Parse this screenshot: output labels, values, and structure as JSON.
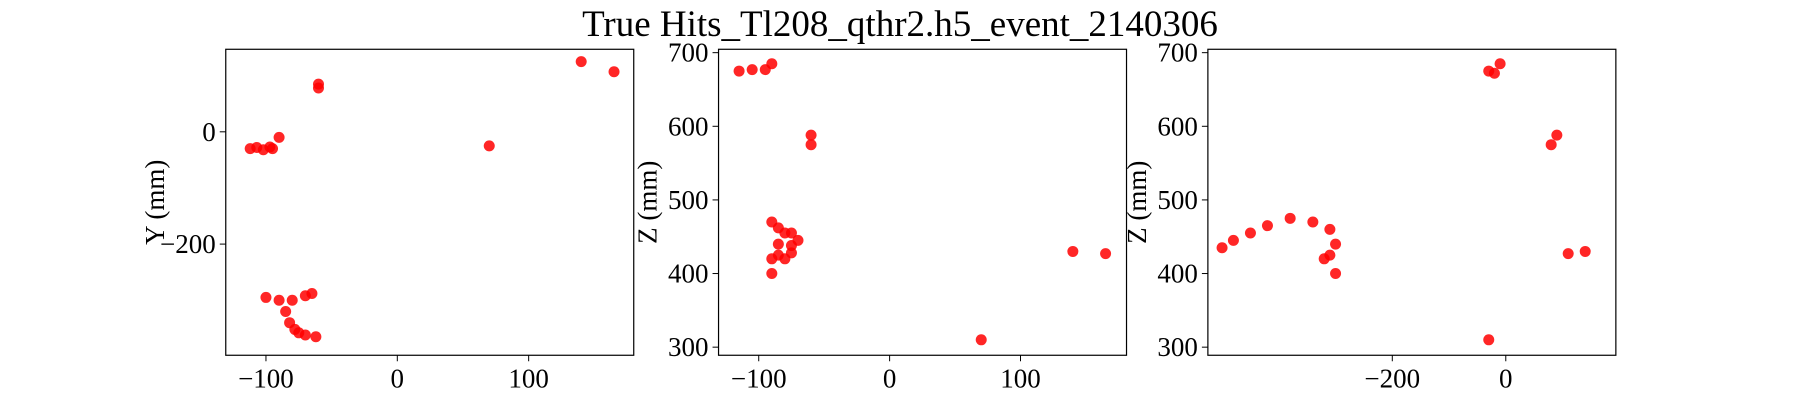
{
  "title": "True Hits_Tl208_qthr2.h5_event_2140306",
  "chart_data": [
    {
      "type": "scatter",
      "ylabel": "Y (mm)",
      "color": "#ff0000",
      "x": [
        -112,
        -107,
        -102,
        -97,
        -95,
        -90,
        -60,
        -60,
        70,
        140,
        165,
        -100,
        -90,
        -80,
        -70,
        -65,
        -85,
        -82,
        -78,
        -75,
        -70,
        -62
      ],
      "y": [
        -30,
        -28,
        -32,
        -27,
        -30,
        -10,
        85,
        78,
        -25,
        125,
        107,
        -295,
        -300,
        -300,
        -292,
        -288,
        -320,
        -340,
        -352,
        -358,
        -362,
        -365
      ],
      "xlim": [
        -130.6,
        180
      ],
      "ylim": [
        -398,
        147
      ],
      "xticks": [
        {
          "value": -100,
          "label": "−100"
        },
        0,
        100
      ],
      "yticks": [
        {
          "value": -200,
          "label": "−200"
        },
        0
      ]
    },
    {
      "type": "scatter",
      "ylabel": "Z (mm)",
      "color": "#ff0000",
      "x": [
        -115,
        -105,
        -95,
        -90,
        -60,
        -60,
        -90,
        -85,
        -80,
        -75,
        -70,
        -75,
        -85,
        -90,
        -80,
        -75,
        -85,
        -90,
        70,
        140,
        165
      ],
      "y": [
        675,
        677,
        677,
        685,
        588,
        575,
        470,
        462,
        455,
        455,
        445,
        438,
        425,
        420,
        420,
        428,
        440,
        400,
        310,
        430,
        427
      ],
      "xlim": [
        -130.7,
        181
      ],
      "ylim": [
        289,
        704.6
      ],
      "xticks": [
        {
          "value": -100,
          "label": "−100"
        },
        0,
        100
      ],
      "yticks": [
        300,
        400,
        500,
        600,
        700
      ]
    },
    {
      "type": "scatter",
      "ylabel": "Z (mm)",
      "color": "#ff0000",
      "x": [
        -500,
        -480,
        -450,
        -420,
        -380,
        -340,
        -310,
        -300,
        -310,
        -320,
        -300,
        -30,
        -20,
        -10,
        -30,
        80,
        90,
        110,
        140
      ],
      "y": [
        435,
        445,
        455,
        465,
        475,
        470,
        460,
        440,
        425,
        420,
        400,
        675,
        672,
        685,
        310,
        575,
        588,
        427,
        430
      ],
      "xlim": [
        -525,
        194
      ],
      "ylim": [
        289,
        704.6
      ],
      "xticks": [
        {
          "value": -200,
          "label": "−200"
        },
        0
      ],
      "yticks": [
        300,
        400,
        500,
        600,
        700
      ]
    }
  ]
}
